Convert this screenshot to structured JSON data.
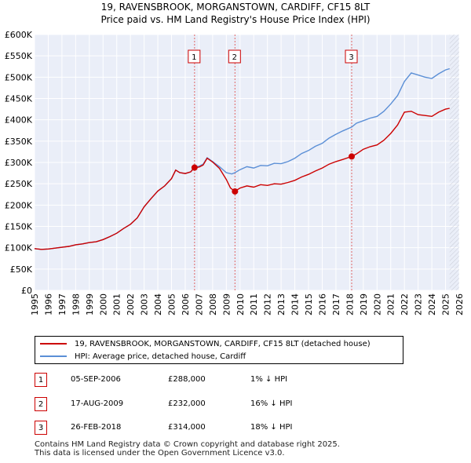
{
  "title_line1": "19, RAVENSBROOK, MORGANSTOWN, CARDIFF, CF15 8LT",
  "title_line2": "Price paid vs. HM Land Registry's House Price Index (HPI)",
  "chart_data": {
    "type": "line",
    "xlim": [
      1995,
      2026
    ],
    "ylim": [
      0,
      600000
    ],
    "x_ticks": [
      "1995",
      "1996",
      "1997",
      "1998",
      "1999",
      "2000",
      "2001",
      "2002",
      "2003",
      "2004",
      "2005",
      "2006",
      "2007",
      "2008",
      "2009",
      "2010",
      "2011",
      "2012",
      "2013",
      "2014",
      "2015",
      "2016",
      "2017",
      "2018",
      "2019",
      "2020",
      "2021",
      "2022",
      "2023",
      "2024",
      "2025",
      "2026"
    ],
    "y_ticks": [
      {
        "value": 0,
        "label": "£0"
      },
      {
        "value": 50000,
        "label": "£50K"
      },
      {
        "value": 100000,
        "label": "£100K"
      },
      {
        "value": 150000,
        "label": "£150K"
      },
      {
        "value": 200000,
        "label": "£200K"
      },
      {
        "value": 250000,
        "label": "£250K"
      },
      {
        "value": 300000,
        "label": "£300K"
      },
      {
        "value": 350000,
        "label": "£350K"
      },
      {
        "value": 400000,
        "label": "£400K"
      },
      {
        "value": 450000,
        "label": "£450K"
      },
      {
        "value": 500000,
        "label": "£500K"
      },
      {
        "value": 550000,
        "label": "£550K"
      },
      {
        "value": 600000,
        "label": "£600K"
      }
    ],
    "grid": true,
    "series": [
      {
        "name": "19, RAVENSBROOK, MORGANSTOWN, CARDIFF, CF15 8LT (detached house)",
        "color": "#cc0000",
        "points": [
          [
            1995,
            98000
          ],
          [
            1995.5,
            96000
          ],
          [
            1996,
            97000
          ],
          [
            1996.5,
            99000
          ],
          [
            1997,
            101000
          ],
          [
            1997.5,
            103000
          ],
          [
            1998,
            107000
          ],
          [
            1998.5,
            109000
          ],
          [
            1999,
            112000
          ],
          [
            1999.5,
            114000
          ],
          [
            2000,
            119000
          ],
          [
            2000.5,
            126000
          ],
          [
            2001,
            134000
          ],
          [
            2001.5,
            145000
          ],
          [
            2002,
            155000
          ],
          [
            2002.5,
            170000
          ],
          [
            2003,
            196000
          ],
          [
            2003.5,
            215000
          ],
          [
            2004,
            233000
          ],
          [
            2004.5,
            245000
          ],
          [
            2005,
            262000
          ],
          [
            2005.3,
            282000
          ],
          [
            2005.6,
            276000
          ],
          [
            2006,
            274000
          ],
          [
            2006.4,
            278000
          ],
          [
            2006.68,
            288000
          ],
          [
            2007,
            289000
          ],
          [
            2007.3,
            294000
          ],
          [
            2007.6,
            310000
          ],
          [
            2008,
            301000
          ],
          [
            2008.5,
            286000
          ],
          [
            2009,
            260000
          ],
          [
            2009.3,
            240000
          ],
          [
            2009.63,
            232000
          ],
          [
            2009.8,
            236000
          ],
          [
            2010,
            240000
          ],
          [
            2010.5,
            245000
          ],
          [
            2011,
            242000
          ],
          [
            2011.5,
            248000
          ],
          [
            2012,
            246000
          ],
          [
            2012.5,
            250000
          ],
          [
            2013,
            249000
          ],
          [
            2013.5,
            253000
          ],
          [
            2014,
            258000
          ],
          [
            2014.5,
            266000
          ],
          [
            2015,
            272000
          ],
          [
            2015.5,
            280000
          ],
          [
            2016,
            287000
          ],
          [
            2016.5,
            296000
          ],
          [
            2017,
            302000
          ],
          [
            2017.5,
            307000
          ],
          [
            2018.15,
            314000
          ],
          [
            2018.5,
            320000
          ],
          [
            2019,
            331000
          ],
          [
            2019.5,
            337000
          ],
          [
            2020,
            341000
          ],
          [
            2020.5,
            352000
          ],
          [
            2021,
            368000
          ],
          [
            2021.5,
            388000
          ],
          [
            2022,
            418000
          ],
          [
            2022.5,
            420000
          ],
          [
            2023,
            412000
          ],
          [
            2023.5,
            410000
          ],
          [
            2024,
            408000
          ],
          [
            2024.5,
            418000
          ],
          [
            2025,
            425000
          ],
          [
            2025.3,
            427000
          ]
        ]
      },
      {
        "name": "HPI: Average price, detached house, Cardiff",
        "color": "#5b8fd6",
        "points": [
          [
            1995,
            98000
          ],
          [
            1995.5,
            96000
          ],
          [
            1996,
            97000
          ],
          [
            1996.5,
            99000
          ],
          [
            1997,
            101000
          ],
          [
            1997.5,
            103000
          ],
          [
            1998,
            107000
          ],
          [
            1998.5,
            109000
          ],
          [
            1999,
            112000
          ],
          [
            1999.5,
            114000
          ],
          [
            2000,
            119000
          ],
          [
            2000.5,
            126000
          ],
          [
            2001,
            134000
          ],
          [
            2001.5,
            145000
          ],
          [
            2002,
            155000
          ],
          [
            2002.5,
            170000
          ],
          [
            2003,
            196000
          ],
          [
            2003.5,
            215000
          ],
          [
            2004,
            233000
          ],
          [
            2004.5,
            245000
          ],
          [
            2005,
            262000
          ],
          [
            2005.3,
            282000
          ],
          [
            2005.6,
            276000
          ],
          [
            2006,
            274000
          ],
          [
            2006.4,
            278000
          ],
          [
            2006.68,
            290000
          ],
          [
            2007,
            291000
          ],
          [
            2007.3,
            296000
          ],
          [
            2007.6,
            311000
          ],
          [
            2008,
            302000
          ],
          [
            2008.5,
            290000
          ],
          [
            2009,
            276000
          ],
          [
            2009.4,
            273000
          ],
          [
            2009.63,
            276000
          ],
          [
            2010,
            283000
          ],
          [
            2010.5,
            290000
          ],
          [
            2011,
            287000
          ],
          [
            2011.5,
            293000
          ],
          [
            2012,
            292000
          ],
          [
            2012.5,
            298000
          ],
          [
            2013,
            297000
          ],
          [
            2013.5,
            302000
          ],
          [
            2014,
            310000
          ],
          [
            2014.5,
            321000
          ],
          [
            2015,
            328000
          ],
          [
            2015.5,
            338000
          ],
          [
            2016,
            345000
          ],
          [
            2016.5,
            357000
          ],
          [
            2017,
            366000
          ],
          [
            2017.5,
            374000
          ],
          [
            2018.15,
            383000
          ],
          [
            2018.5,
            392000
          ],
          [
            2019,
            398000
          ],
          [
            2019.5,
            404000
          ],
          [
            2020,
            408000
          ],
          [
            2020.5,
            420000
          ],
          [
            2021,
            437000
          ],
          [
            2021.5,
            457000
          ],
          [
            2022,
            490000
          ],
          [
            2022.5,
            510000
          ],
          [
            2023,
            505000
          ],
          [
            2023.5,
            500000
          ],
          [
            2024,
            497000
          ],
          [
            2024.5,
            508000
          ],
          [
            2025,
            517000
          ],
          [
            2025.3,
            520000
          ]
        ]
      }
    ],
    "sales": [
      {
        "label": "1",
        "x": 2006.68,
        "price": 288000
      },
      {
        "label": "2",
        "x": 2009.63,
        "price": 232000
      },
      {
        "label": "3",
        "x": 2018.15,
        "price": 314000
      }
    ]
  },
  "legend": {
    "red_label": "19, RAVENSBROOK, MORGANSTOWN, CARDIFF, CF15 8LT (detached house)",
    "blue_label": "HPI: Average price, detached house, Cardiff"
  },
  "transactions": [
    {
      "num": "1",
      "date": "05-SEP-2006",
      "price": "£288,000",
      "hpi": "1% ↓ HPI"
    },
    {
      "num": "2",
      "date": "17-AUG-2009",
      "price": "£232,000",
      "hpi": "16% ↓ HPI"
    },
    {
      "num": "3",
      "date": "26-FEB-2018",
      "price": "£314,000",
      "hpi": "18% ↓ HPI"
    }
  ],
  "footer_line1": "Contains HM Land Registry data © Crown copyright and database right 2025.",
  "footer_line2": "This data is licensed under the Open Government Licence v3.0."
}
